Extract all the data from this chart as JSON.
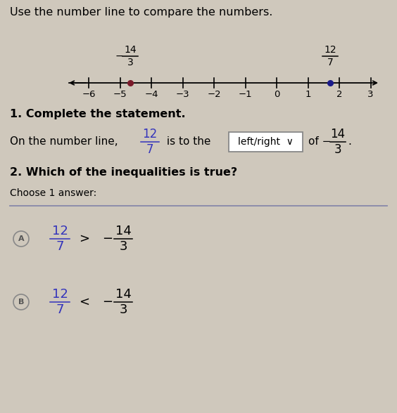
{
  "bg_color": "#cfc8bc",
  "title_text": "Use the number line to compare the numbers.",
  "title_fontsize": 11.5,
  "title_color": "#000000",
  "nl_tick_vals": [
    -6,
    -5,
    -4,
    -3,
    -2,
    -1,
    0,
    1,
    2,
    3
  ],
  "nl_point1_val": -4.6667,
  "nl_point1_num": "14",
  "nl_point1_den": "3",
  "nl_point1_prefix": "−",
  "nl_point1_color": "#7a1a2a",
  "nl_point2_val": 1.7143,
  "nl_point2_num": "12",
  "nl_point2_den": "7",
  "nl_point2_prefix": "",
  "nl_point2_color": "#1a1a8a",
  "s1_title": "1. Complete the statement.",
  "s2_title": "2. Which of the inequalities is true?",
  "choose_text": "Choose 1 answer:",
  "frac_color": "#3333bb",
  "text_color": "#000000",
  "box_edge_color": "#888888",
  "divider_color": "#8888aa",
  "circle_edge_color": "#888888"
}
